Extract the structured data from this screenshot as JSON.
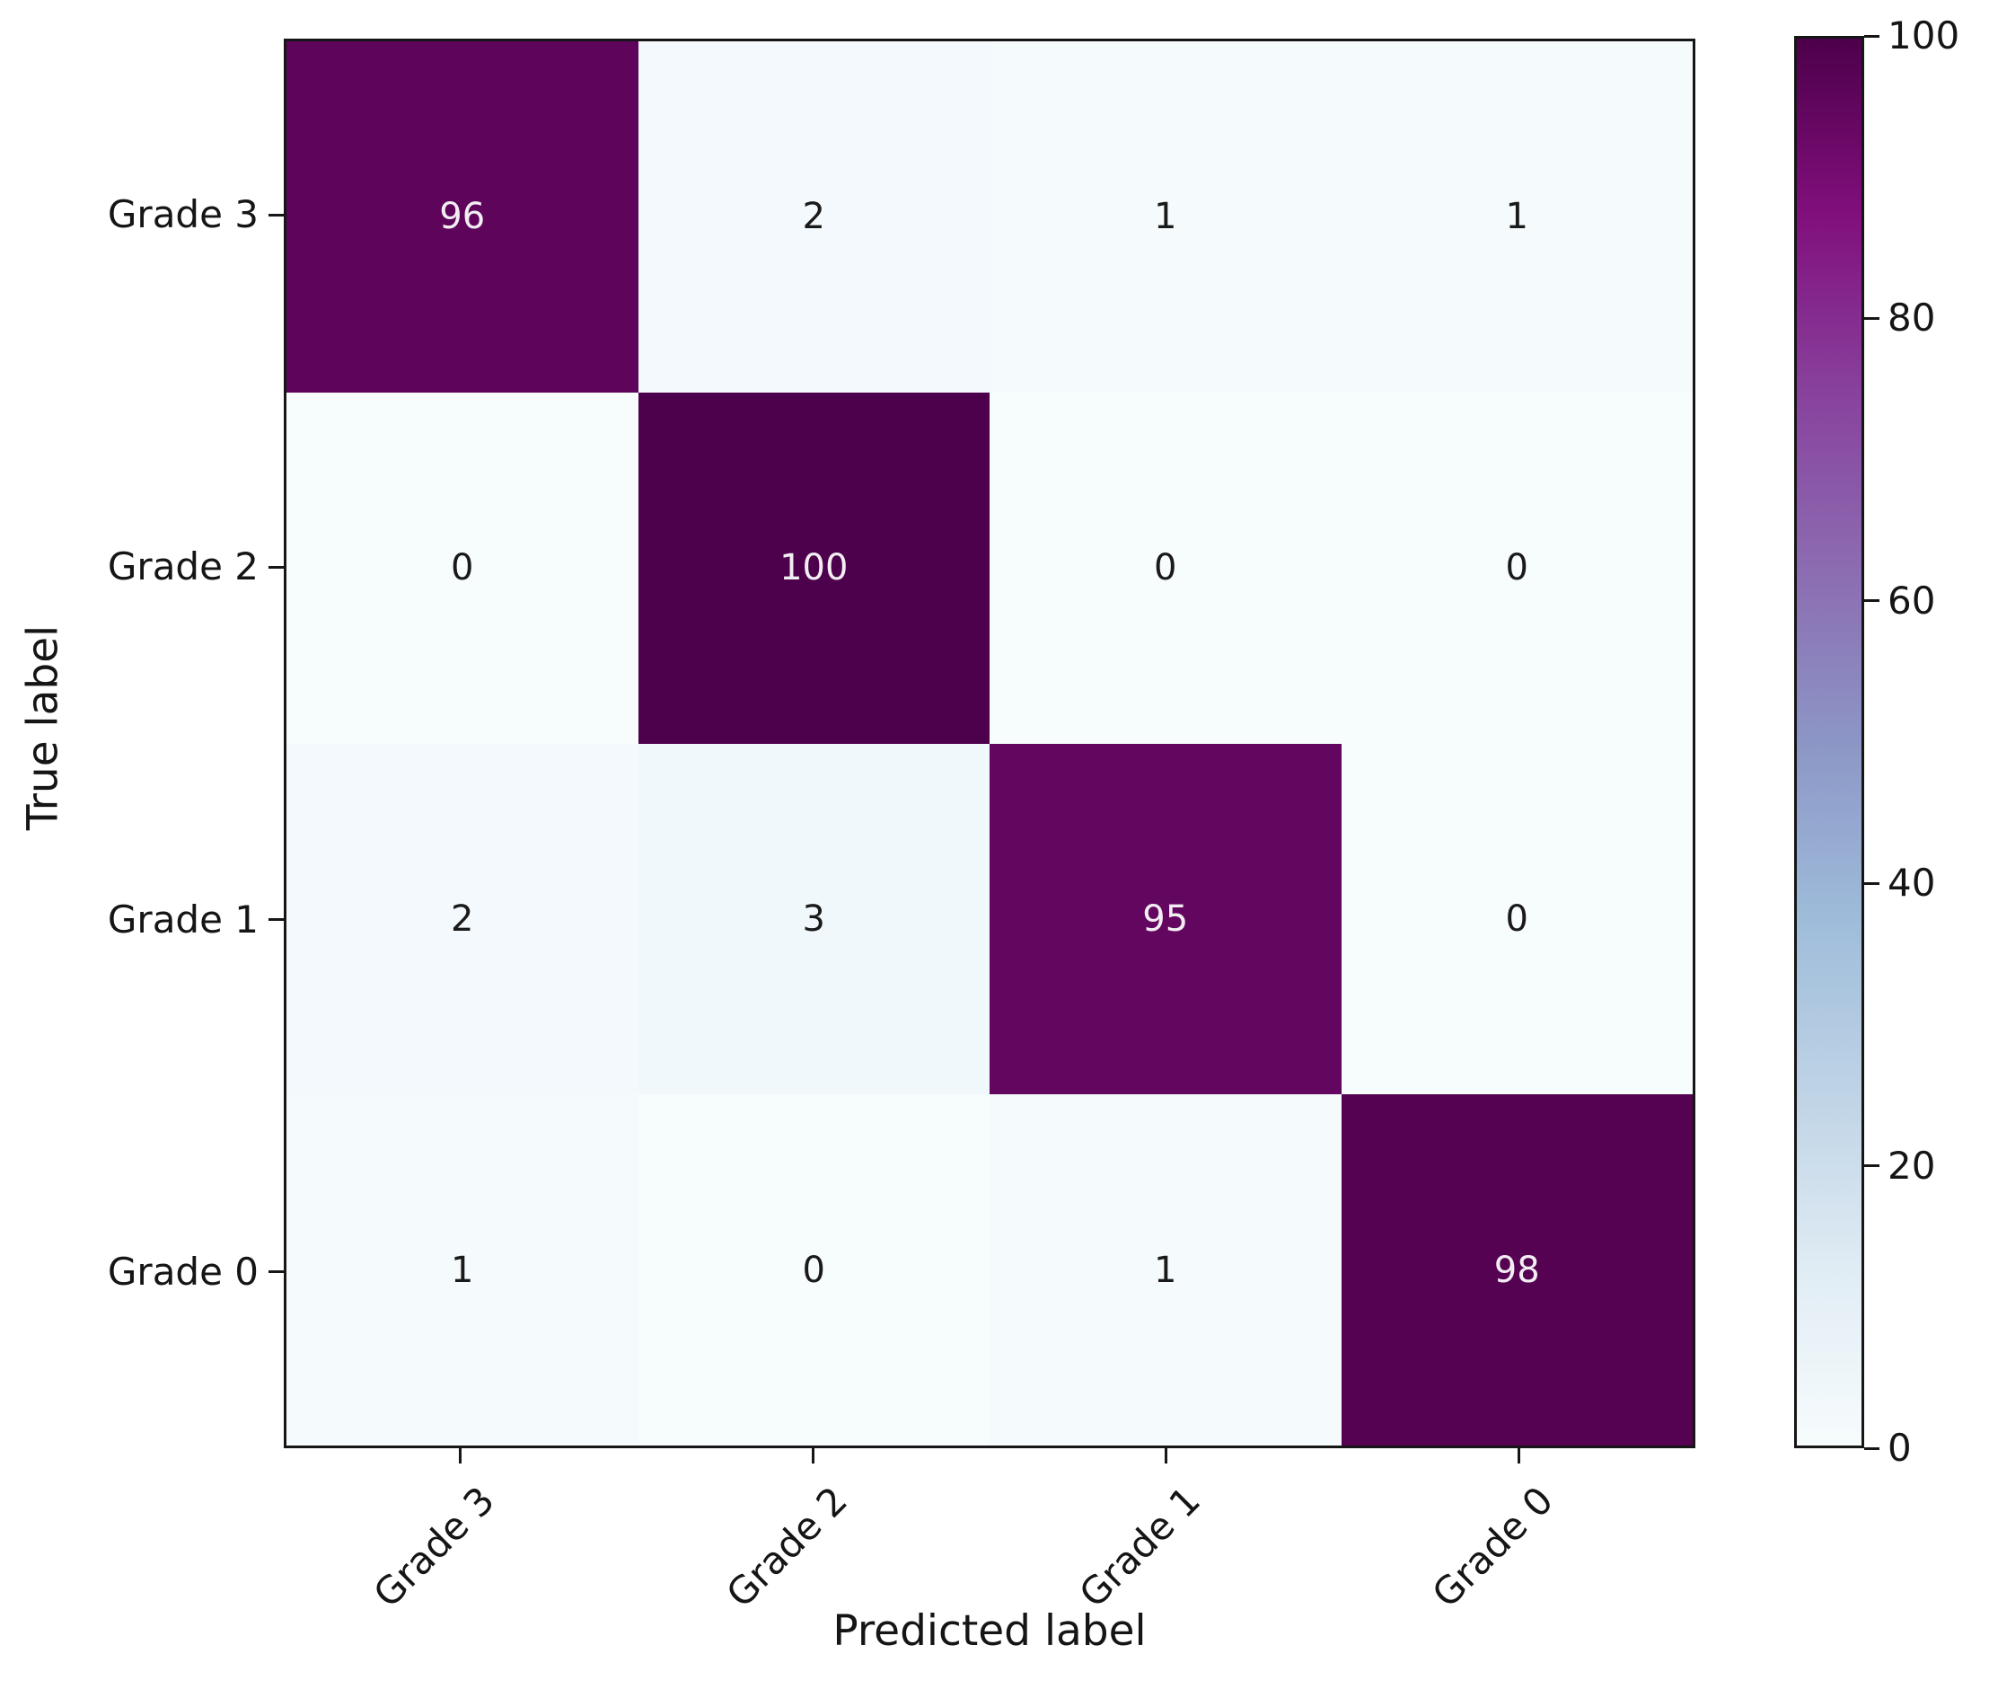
{
  "chart_data": {
    "type": "heatmap",
    "title": "",
    "xlabel": "Predicted label",
    "ylabel": "True label",
    "x_categories": [
      "Grade 3",
      "Grade 2",
      "Grade 1",
      "Grade 0"
    ],
    "y_categories": [
      "Grade 3",
      "Grade 2",
      "Grade 1",
      "Grade 0"
    ],
    "matrix": [
      [
        96,
        2,
        1,
        1
      ],
      [
        0,
        100,
        0,
        0
      ],
      [
        2,
        3,
        95,
        0
      ],
      [
        1,
        0,
        1,
        98
      ]
    ],
    "colorbar": {
      "min": 0,
      "max": 100,
      "ticks": [
        0,
        20,
        40,
        60,
        80,
        100
      ]
    },
    "colormap": {
      "name": "BuPu",
      "stops": [
        {
          "pos": 0.0,
          "color": "#f7fcfd"
        },
        {
          "pos": 0.125,
          "color": "#e0ecf4"
        },
        {
          "pos": 0.25,
          "color": "#bfd3e6"
        },
        {
          "pos": 0.375,
          "color": "#9ebcda"
        },
        {
          "pos": 0.5,
          "color": "#8c96c6"
        },
        {
          "pos": 0.625,
          "color": "#8c6bb1"
        },
        {
          "pos": 0.75,
          "color": "#88419d"
        },
        {
          "pos": 0.875,
          "color": "#810f7c"
        },
        {
          "pos": 1.0,
          "color": "#4d004b"
        }
      ]
    },
    "text_colors": {
      "on_dark": "#f3eef3",
      "on_light": "#1a1a1a",
      "axis_text": "#151515"
    }
  }
}
